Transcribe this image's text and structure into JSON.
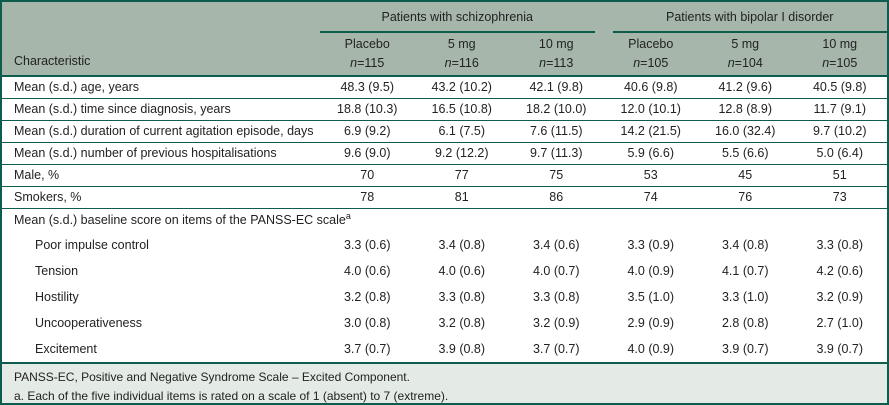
{
  "colors": {
    "line": "#0e5c4d",
    "header_bg": "#a6b6ab",
    "footer_bg": "#e4eae5",
    "text": "#222222"
  },
  "table": {
    "char_header": "Characteristic",
    "n_label": "n",
    "groups": [
      {
        "label": "Patients with schizophrenia"
      },
      {
        "label": "Patients with bipolar I disorder"
      }
    ],
    "columns": [
      {
        "arm": "Placebo",
        "n": "=115"
      },
      {
        "arm": "5 mg",
        "n": "=116"
      },
      {
        "arm": "10 mg",
        "n": "=113"
      },
      {
        "arm": "Placebo",
        "n": "=105"
      },
      {
        "arm": "5 mg",
        "n": "=104"
      },
      {
        "arm": "10 mg",
        "n": "=105"
      }
    ],
    "rows": [
      {
        "type": "data",
        "label": "Mean (s.d.) age, years",
        "separator": true,
        "values": [
          "48.3 (9.5)",
          "43.2 (10.2)",
          "42.1 (9.8)",
          "40.6 (9.8)",
          "41.2 (9.6)",
          "40.5 (9.8)"
        ]
      },
      {
        "type": "data",
        "label": "Mean (s.d.) time since diagnosis, years",
        "separator": true,
        "values": [
          "18.8 (10.3)",
          "16.5 (10.8)",
          "18.2 (10.0)",
          "12.0 (10.1)",
          "12.8 (8.9)",
          "11.7 (9.1)"
        ]
      },
      {
        "type": "data",
        "label": "Mean (s.d.) duration of current agitation episode, days",
        "separator": true,
        "values": [
          "6.9 (9.2)",
          "6.1 (7.5)",
          "7.6 (11.5)",
          "14.2 (21.5)",
          "16.0 (32.4)",
          "9.7 (10.2)"
        ]
      },
      {
        "type": "data",
        "label": "Mean (s.d.) number of previous hospitalisations",
        "separator": true,
        "values": [
          "9.6 (9.0)",
          "9.2 (12.2)",
          "9.7 (11.3)",
          "5.9 (6.6)",
          "5.5 (6.6)",
          "5.0 (6.4)"
        ]
      },
      {
        "type": "data",
        "label": "Male, %",
        "separator": true,
        "values": [
          "70",
          "77",
          "75",
          "53",
          "45",
          "51"
        ]
      },
      {
        "type": "data",
        "label": "Smokers, %",
        "separator": true,
        "values": [
          "78",
          "81",
          "86",
          "74",
          "76",
          "73"
        ]
      },
      {
        "type": "section",
        "label": "Mean (s.d.) baseline score on items of the PANSS-EC scale",
        "sup": "a"
      },
      {
        "type": "data",
        "label": "Poor impulse control",
        "indent": true,
        "separator": false,
        "values": [
          "3.3 (0.6)",
          "3.4 (0.8)",
          "3.4 (0.6)",
          "3.3 (0.9)",
          "3.4 (0.8)",
          "3.3 (0.8)"
        ]
      },
      {
        "type": "data",
        "label": "Tension",
        "indent": true,
        "separator": false,
        "values": [
          "4.0 (0.6)",
          "4.0 (0.6)",
          "4.0 (0.7)",
          "4.0 (0.9)",
          "4.1 (0.7)",
          "4.2 (0.6)"
        ]
      },
      {
        "type": "data",
        "label": "Hostility",
        "indent": true,
        "separator": false,
        "values": [
          "3.2 (0.8)",
          "3.3 (0.8)",
          "3.3 (0.8)",
          "3.5 (1.0)",
          "3.3 (1.0)",
          "3.2 (0.9)"
        ]
      },
      {
        "type": "data",
        "label": "Uncooperativeness",
        "indent": true,
        "separator": false,
        "values": [
          "3.0 (0.8)",
          "3.2 (0.8)",
          "3.2 (0.9)",
          "2.9 (0.9)",
          "2.8 (0.8)",
          "2.7 (1.0)"
        ]
      },
      {
        "type": "data",
        "label": "Excitement",
        "indent": true,
        "separator": false,
        "values": [
          "3.7 (0.7)",
          "3.9 (0.8)",
          "3.7 (0.7)",
          "4.0 (0.9)",
          "3.9 (0.7)",
          "3.9 (0.7)"
        ]
      }
    ],
    "footnotes": [
      "PANSS-EC, Positive and Negative Syndrome Scale – Excited Component.",
      "a. Each of the five individual items is rated on a scale of 1 (absent) to 7 (extreme)."
    ]
  }
}
